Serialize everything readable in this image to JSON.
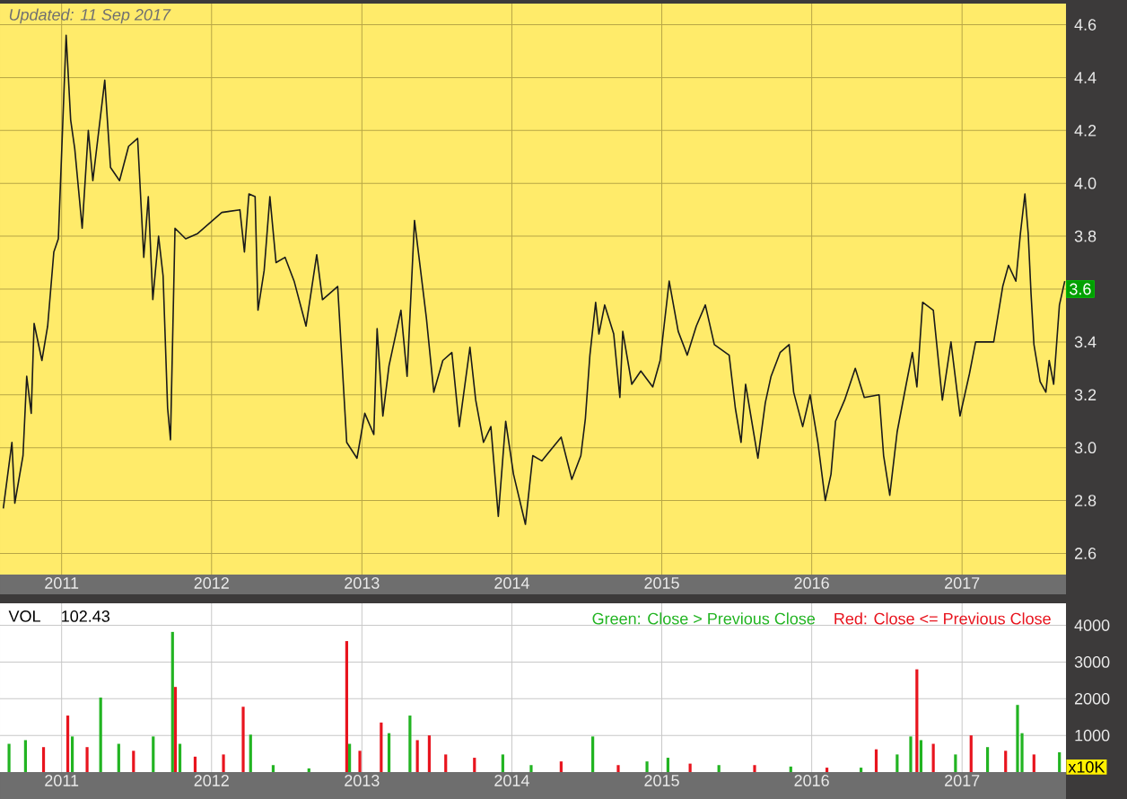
{
  "chart_data": [
    {
      "type": "line",
      "color": "#1a1a1a",
      "grid": true,
      "marker": "none",
      "xlim": [
        "2010-08-04",
        "2017-09-11"
      ],
      "ylim": [
        2.52,
        4.68
      ],
      "xticks": [
        "2011",
        "2012",
        "2013",
        "2014",
        "2015",
        "2016",
        "2017"
      ],
      "yticks": [
        2.6,
        2.8,
        {
          "value": 3.0,
          "label": "3.0"
        },
        3.2,
        3.4,
        {
          "value": 3.6,
          "label": null
        },
        3.8,
        {
          "value": 4.0,
          "label": "4.0"
        },
        4.2,
        4.4,
        4.6
      ],
      "annotations": [
        "Updated: 11 Sep 2017",
        {
          "text": "3.6",
          "x": "2017-09-11",
          "y": 3.6
        }
      ],
      "x": [
        "2010-08-12",
        "2010-09-02",
        "2010-09-09",
        "2010-09-29",
        "2010-10-08",
        "2010-10-19",
        "2010-10-26",
        "2010-11-14",
        "2010-11-28",
        "2010-12-13",
        "2010-12-24",
        "2011-01-12",
        "2011-01-23",
        "2011-02-02",
        "2011-02-20",
        "2011-03-07",
        "2011-03-18",
        "2011-04-16",
        "2011-04-30",
        "2011-05-22",
        "2011-06-13",
        "2011-07-05",
        "2011-07-20",
        "2011-07-31",
        "2011-08-11",
        "2011-08-25",
        "2011-09-05",
        "2011-09-16",
        "2011-09-23",
        "2011-10-04",
        "2011-10-30",
        "2011-11-28",
        "2012-01-26",
        "2012-03-10",
        "2012-03-21",
        "2012-04-01",
        "2012-04-16",
        "2012-04-23",
        "2012-05-08",
        "2012-05-22",
        "2012-06-06",
        "2012-06-28",
        "2012-07-20",
        "2012-08-18",
        "2012-09-13",
        "2012-09-27",
        "2012-11-03",
        "2012-11-25",
        "2012-12-20",
        "2013-01-08",
        "2013-01-30",
        "2013-02-07",
        "2013-02-21",
        "2013-03-08",
        "2013-04-06",
        "2013-04-21",
        "2013-05-09",
        "2013-05-20",
        "2013-06-07",
        "2013-06-25",
        "2013-07-17",
        "2013-08-08",
        "2013-08-26",
        "2013-09-21",
        "2013-10-05",
        "2013-10-24",
        "2013-11-11",
        "2013-11-29",
        "2013-12-17",
        "2014-01-05",
        "2014-02-03",
        "2014-02-21",
        "2014-03-15",
        "2014-05-01",
        "2014-05-27",
        "2014-06-18",
        "2014-06-29",
        "2014-07-10",
        "2014-07-24",
        "2014-08-01",
        "2014-08-15",
        "2014-09-06",
        "2014-09-21",
        "2014-09-28",
        "2014-10-20",
        "2014-11-11",
        "2014-12-10",
        "2014-12-28",
        "2015-01-19",
        "2015-02-10",
        "2015-03-04",
        "2015-03-26",
        "2015-04-17",
        "2015-05-09",
        "2015-06-14",
        "2015-06-29",
        "2015-07-13",
        "2015-07-24",
        "2015-08-23",
        "2015-09-10",
        "2015-09-24",
        "2015-10-16",
        "2015-11-07",
        "2015-11-18",
        "2015-12-10",
        "2015-12-28",
        "2016-01-16",
        "2016-02-03",
        "2016-02-17",
        "2016-02-28",
        "2016-03-21",
        "2016-04-16",
        "2016-05-08",
        "2016-06-13",
        "2016-06-24",
        "2016-07-09",
        "2016-07-27",
        "2016-08-18",
        "2016-09-02",
        "2016-09-13",
        "2016-09-27",
        "2016-10-23",
        "2016-11-14",
        "2016-12-05",
        "2016-12-27",
        "2017-01-19",
        "2017-02-03",
        "2017-03-19",
        "2017-04-10",
        "2017-04-24",
        "2017-05-12",
        "2017-05-23",
        "2017-06-03",
        "2017-06-11",
        "2017-06-18",
        "2017-06-25",
        "2017-07-10",
        "2017-07-24",
        "2017-08-01",
        "2017-08-12",
        "2017-08-26",
        "2017-09-08"
      ],
      "values": [
        2.77,
        3.02,
        2.79,
        2.97,
        3.27,
        3.13,
        3.47,
        3.33,
        3.46,
        3.74,
        3.79,
        4.56,
        4.24,
        4.13,
        3.83,
        4.2,
        4.01,
        4.39,
        4.06,
        4.01,
        4.14,
        4.17,
        3.72,
        3.95,
        3.56,
        3.8,
        3.65,
        3.15,
        3.03,
        3.83,
        3.79,
        3.81,
        3.89,
        3.9,
        3.74,
        3.96,
        3.95,
        3.52,
        3.67,
        3.95,
        3.7,
        3.72,
        3.63,
        3.46,
        3.73,
        3.56,
        3.61,
        3.02,
        2.96,
        3.13,
        3.05,
        3.45,
        3.12,
        3.31,
        3.52,
        3.27,
        3.86,
        3.72,
        3.49,
        3.21,
        3.33,
        3.36,
        3.08,
        3.38,
        3.18,
        3.02,
        3.08,
        2.74,
        3.1,
        2.9,
        2.71,
        2.97,
        2.95,
        3.04,
        2.88,
        2.97,
        3.11,
        3.35,
        3.55,
        3.43,
        3.54,
        3.43,
        3.19,
        3.44,
        3.24,
        3.29,
        3.23,
        3.33,
        3.63,
        3.44,
        3.35,
        3.46,
        3.54,
        3.39,
        3.35,
        3.15,
        3.02,
        3.24,
        2.96,
        3.17,
        3.27,
        3.36,
        3.39,
        3.21,
        3.08,
        3.2,
        3.02,
        2.8,
        2.9,
        3.1,
        3.18,
        3.3,
        3.19,
        3.2,
        2.97,
        2.82,
        3.06,
        3.24,
        3.36,
        3.23,
        3.55,
        3.52,
        3.18,
        3.4,
        3.12,
        3.28,
        3.4,
        3.4,
        3.61,
        3.69,
        3.63,
        3.81,
        3.96,
        3.81,
        3.58,
        3.39,
        3.25,
        3.21,
        3.33,
        3.24,
        3.54,
        3.63
      ]
    },
    {
      "type": "bar",
      "title": "VOL",
      "ylabel": "x10K",
      "grid": true,
      "legend": "top right",
      "xlim": [
        "2010-08-04",
        "2017-09-11"
      ],
      "ylim": [
        0,
        4600
      ],
      "xticks": [
        "2011",
        "2012",
        "2013",
        "2014",
        "2015",
        "2016",
        "2017"
      ],
      "yticks": [
        1000,
        2000,
        3000,
        4000
      ],
      "annotations": [
        "102.43"
      ],
      "series": [
        {
          "name": "Green: Close > Previous Close",
          "color": "#22b422",
          "x": [
            "2010-08-26",
            "2010-10-05",
            "2011-01-27",
            "2011-04-06",
            "2011-05-20",
            "2011-08-12",
            "2011-09-28",
            "2011-10-16",
            "2012-04-05",
            "2012-05-30",
            "2012-08-25",
            "2012-12-02",
            "2013-03-08",
            "2013-04-28",
            "2013-12-10",
            "2014-02-17",
            "2014-07-17",
            "2014-11-26",
            "2015-01-16",
            "2015-05-20",
            "2015-11-11",
            "2016-04-30",
            "2016-07-27",
            "2016-08-29",
            "2016-09-23",
            "2016-12-16",
            "2017-03-04",
            "2017-05-16",
            "2017-05-27",
            "2017-08-26"
          ],
          "values": [
            770,
            870,
            970,
            2030,
            770,
            970,
            3820,
            770,
            1020,
            190,
            100,
            770,
            1060,
            1540,
            480,
            190,
            970,
            290,
            390,
            190,
            150,
            120,
            480,
            970,
            870,
            480,
            680,
            1830,
            1060,
            540
          ]
        },
        {
          "name": "Red: Close <= Previous Close",
          "color": "#e8141e",
          "x": [
            "2010-11-18",
            "2011-01-16",
            "2011-03-04",
            "2011-06-25",
            "2011-10-05",
            "2011-11-22",
            "2012-01-30",
            "2012-03-18",
            "2012-11-25",
            "2012-12-27",
            "2013-02-17",
            "2013-05-16",
            "2013-06-14",
            "2013-07-24",
            "2013-10-02",
            "2014-05-01",
            "2014-09-17",
            "2015-03-11",
            "2015-08-15",
            "2016-02-07",
            "2016-06-06",
            "2016-09-13",
            "2016-10-23",
            "2017-01-23",
            "2017-04-17",
            "2017-06-25"
          ],
          "values": [
            680,
            1540,
            680,
            580,
            2320,
            420,
            480,
            1780,
            3570,
            580,
            1350,
            870,
            1000,
            480,
            390,
            290,
            190,
            230,
            190,
            120,
            620,
            2800,
            770,
            1000,
            580,
            480
          ]
        }
      ]
    }
  ]
}
